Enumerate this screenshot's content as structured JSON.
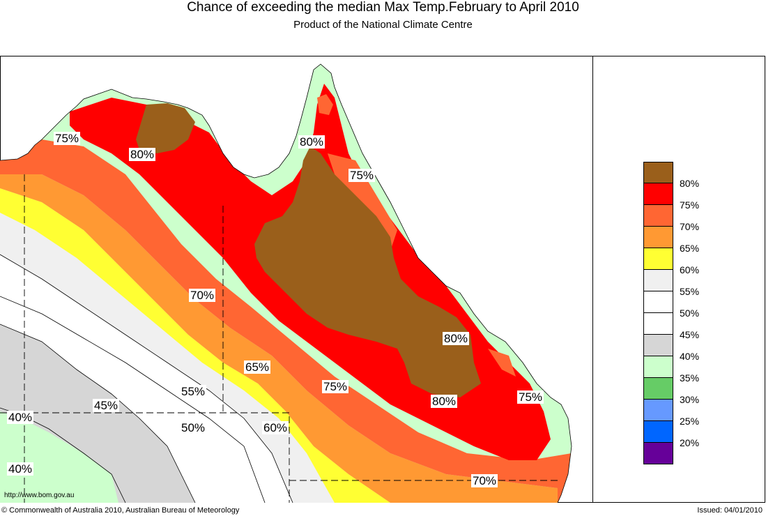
{
  "title": "Chance of exceeding the median Max Temp.February to April 2010",
  "subtitle": "Product of the National Climate Centre",
  "url": "http://www.bom.gov.au",
  "copyright": "© Commonwealth of Australia 2010, Australian Bureau of Meteorology",
  "issued": "Issued: 04/01/2010",
  "legend": [
    {
      "color": "#9a5f1b",
      "label": "80%"
    },
    {
      "color": "#ff0000",
      "label": "75%"
    },
    {
      "color": "#ff6633",
      "label": "70%"
    },
    {
      "color": "#ff9933",
      "label": "65%"
    },
    {
      "color": "#ffff33",
      "label": "60%"
    },
    {
      "color": "#f0f0f0",
      "label": "55%"
    },
    {
      "color": "#ffffff",
      "label": "50%"
    },
    {
      "color": "#ffffff",
      "label": "45%"
    },
    {
      "color": "#d6d6d6",
      "label": "40%"
    },
    {
      "color": "#ccffcc",
      "label": "35%"
    },
    {
      "color": "#66cc66",
      "label": "30%"
    },
    {
      "color": "#6699ff",
      "label": "25%"
    },
    {
      "color": "#0066ff",
      "label": "20%"
    },
    {
      "color": "#660099",
      "label": ""
    }
  ],
  "map_labels": {
    "nt_75": "75%",
    "nt_80": "80%",
    "cape_80": "80%",
    "cape_75": "75%",
    "inland_70": "70%",
    "inland_65": "65%",
    "central_75": "75%",
    "central_80": "80%",
    "east_75": "75%",
    "sw_55": "55%",
    "sw_45": "45%",
    "sw_40a": "40%",
    "sw_50": "50%",
    "sw_60": "60%",
    "sw_40b": "40%",
    "se_70": "70%"
  }
}
